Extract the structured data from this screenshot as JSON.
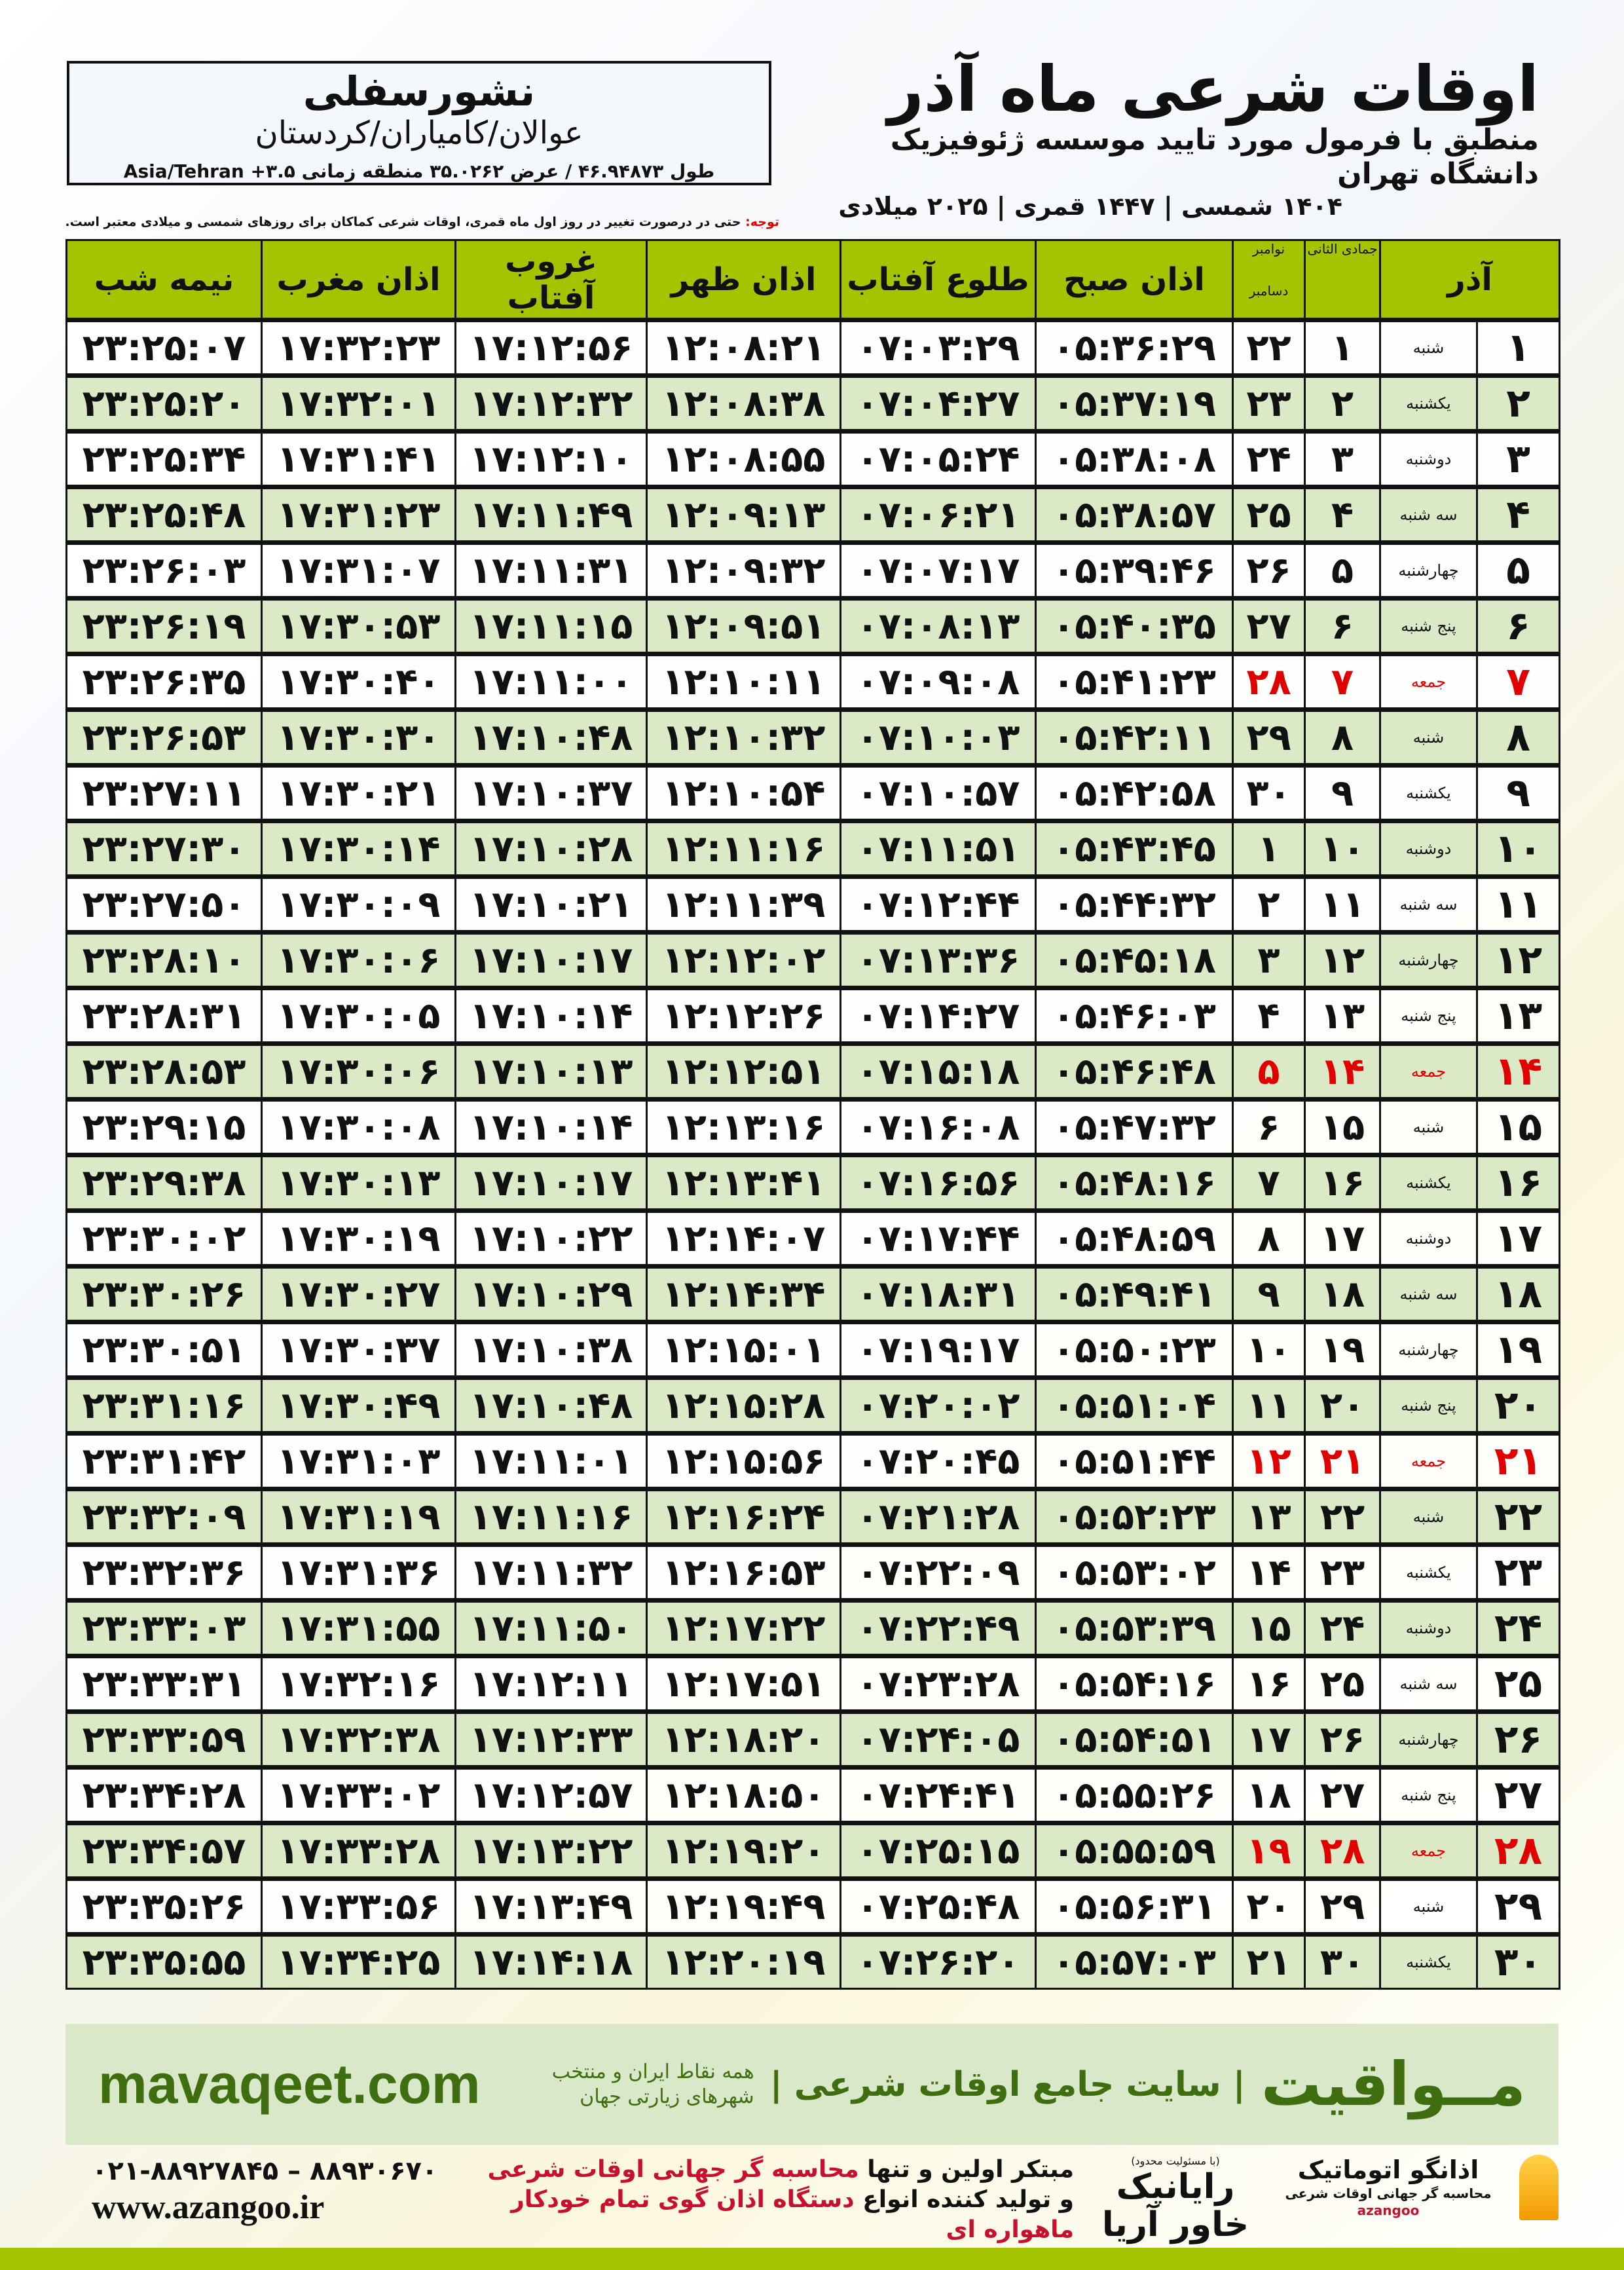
{
  "location": {
    "name": "نشورسفلی",
    "region": "عوالان/کامیاران/کردستان",
    "coords": "طول ۴۶.۹۴۸۷۳ / عرض ۳۵.۰۲۶۲ منطقه زمانی ۳.۵+ Asia/Tehran"
  },
  "header": {
    "title": "اوقات شرعی ماه آذر",
    "subtitle": "منطبق با فرمول مورد تایید موسسه ژئوفیزیک دانشگاه تهران",
    "years": "۱۴۰۴ شمسی | ۱۴۴۷ قمری | ۲۰۲۵ میلادی",
    "note_label": "توجه:",
    "note": " حتی در درصورت تغییر در روز اول ماه قمری، اوقات شرعی کماکان برای روزهای شمسی و میلادی معتبر است."
  },
  "colors": {
    "header_green": "#a5c400",
    "row_alt": "#dce9c7",
    "friday": "#e00000",
    "brand_green": "#3f6e10"
  },
  "table": {
    "columns": {
      "azar": "آذر",
      "jumada": "جمادی الثانی",
      "november": "نوامبر",
      "december": "دسامبر",
      "fajr": "اذان صبح",
      "sunrise": "طلوع آفتاب",
      "dhuhr": "اذان ظهر",
      "sunset": "غروب آفتاب",
      "maghrib": "اذان مغرب",
      "midnight": "نیمه شب"
    },
    "rows": [
      {
        "azar": "۱",
        "weekday": "شنبه",
        "jumada": "۱",
        "greg": "۲۲",
        "fajr": "۰۵:۳۶:۲۹",
        "sunrise": "۰۷:۰۳:۲۹",
        "dhuhr": "۱۲:۰۸:۲۱",
        "sunset": "۱۷:۱۲:۵۶",
        "maghrib": "۱۷:۳۲:۲۳",
        "midnight": "۲۳:۲۵:۰۷"
      },
      {
        "azar": "۲",
        "weekday": "یکشنبه",
        "jumada": "۲",
        "greg": "۲۳",
        "fajr": "۰۵:۳۷:۱۹",
        "sunrise": "۰۷:۰۴:۲۷",
        "dhuhr": "۱۲:۰۸:۳۸",
        "sunset": "۱۷:۱۲:۳۲",
        "maghrib": "۱۷:۳۲:۰۱",
        "midnight": "۲۳:۲۵:۲۰"
      },
      {
        "azar": "۳",
        "weekday": "دوشنبه",
        "jumada": "۳",
        "greg": "۲۴",
        "fajr": "۰۵:۳۸:۰۸",
        "sunrise": "۰۷:۰۵:۲۴",
        "dhuhr": "۱۲:۰۸:۵۵",
        "sunset": "۱۷:۱۲:۱۰",
        "maghrib": "۱۷:۳۱:۴۱",
        "midnight": "۲۳:۲۵:۳۴"
      },
      {
        "azar": "۴",
        "weekday": "سه شنبه",
        "jumada": "۴",
        "greg": "۲۵",
        "fajr": "۰۵:۳۸:۵۷",
        "sunrise": "۰۷:۰۶:۲۱",
        "dhuhr": "۱۲:۰۹:۱۳",
        "sunset": "۱۷:۱۱:۴۹",
        "maghrib": "۱۷:۳۱:۲۳",
        "midnight": "۲۳:۲۵:۴۸"
      },
      {
        "azar": "۵",
        "weekday": "چهارشنبه",
        "jumada": "۵",
        "greg": "۲۶",
        "fajr": "۰۵:۳۹:۴۶",
        "sunrise": "۰۷:۰۷:۱۷",
        "dhuhr": "۱۲:۰۹:۳۲",
        "sunset": "۱۷:۱۱:۳۱",
        "maghrib": "۱۷:۳۱:۰۷",
        "midnight": "۲۳:۲۶:۰۳"
      },
      {
        "azar": "۶",
        "weekday": "پنج شنبه",
        "jumada": "۶",
        "greg": "۲۷",
        "fajr": "۰۵:۴۰:۳۵",
        "sunrise": "۰۷:۰۸:۱۳",
        "dhuhr": "۱۲:۰۹:۵۱",
        "sunset": "۱۷:۱۱:۱۵",
        "maghrib": "۱۷:۳۰:۵۳",
        "midnight": "۲۳:۲۶:۱۹"
      },
      {
        "azar": "۷",
        "weekday": "جمعه",
        "jumada": "۷",
        "greg": "۲۸",
        "fajr": "۰۵:۴۱:۲۳",
        "sunrise": "۰۷:۰۹:۰۸",
        "dhuhr": "۱۲:۱۰:۱۱",
        "sunset": "۱۷:۱۱:۰۰",
        "maghrib": "۱۷:۳۰:۴۰",
        "midnight": "۲۳:۲۶:۳۵",
        "friday": true
      },
      {
        "azar": "۸",
        "weekday": "شنبه",
        "jumada": "۸",
        "greg": "۲۹",
        "fajr": "۰۵:۴۲:۱۱",
        "sunrise": "۰۷:۱۰:۰۳",
        "dhuhr": "۱۲:۱۰:۳۲",
        "sunset": "۱۷:۱۰:۴۸",
        "maghrib": "۱۷:۳۰:۳۰",
        "midnight": "۲۳:۲۶:۵۳"
      },
      {
        "azar": "۹",
        "weekday": "یکشنبه",
        "jumada": "۹",
        "greg": "۳۰",
        "fajr": "۰۵:۴۲:۵۸",
        "sunrise": "۰۷:۱۰:۵۷",
        "dhuhr": "۱۲:۱۰:۵۴",
        "sunset": "۱۷:۱۰:۳۷",
        "maghrib": "۱۷:۳۰:۲۱",
        "midnight": "۲۳:۲۷:۱۱"
      },
      {
        "azar": "۱۰",
        "weekday": "دوشنبه",
        "jumada": "۱۰",
        "greg": "۱",
        "fajr": "۰۵:۴۳:۴۵",
        "sunrise": "۰۷:۱۱:۵۱",
        "dhuhr": "۱۲:۱۱:۱۶",
        "sunset": "۱۷:۱۰:۲۸",
        "maghrib": "۱۷:۳۰:۱۴",
        "midnight": "۲۳:۲۷:۳۰"
      },
      {
        "azar": "۱۱",
        "weekday": "سه شنبه",
        "jumada": "۱۱",
        "greg": "۲",
        "fajr": "۰۵:۴۴:۳۲",
        "sunrise": "۰۷:۱۲:۴۴",
        "dhuhr": "۱۲:۱۱:۳۹",
        "sunset": "۱۷:۱۰:۲۱",
        "maghrib": "۱۷:۳۰:۰۹",
        "midnight": "۲۳:۲۷:۵۰"
      },
      {
        "azar": "۱۲",
        "weekday": "چهارشنبه",
        "jumada": "۱۲",
        "greg": "۳",
        "fajr": "۰۵:۴۵:۱۸",
        "sunrise": "۰۷:۱۳:۳۶",
        "dhuhr": "۱۲:۱۲:۰۲",
        "sunset": "۱۷:۱۰:۱۷",
        "maghrib": "۱۷:۳۰:۰۶",
        "midnight": "۲۳:۲۸:۱۰"
      },
      {
        "azar": "۱۳",
        "weekday": "پنج شنبه",
        "jumada": "۱۳",
        "greg": "۴",
        "fajr": "۰۵:۴۶:۰۳",
        "sunrise": "۰۷:۱۴:۲۷",
        "dhuhr": "۱۲:۱۲:۲۶",
        "sunset": "۱۷:۱۰:۱۴",
        "maghrib": "۱۷:۳۰:۰۵",
        "midnight": "۲۳:۲۸:۳۱"
      },
      {
        "azar": "۱۴",
        "weekday": "جمعه",
        "jumada": "۱۴",
        "greg": "۵",
        "fajr": "۰۵:۴۶:۴۸",
        "sunrise": "۰۷:۱۵:۱۸",
        "dhuhr": "۱۲:۱۲:۵۱",
        "sunset": "۱۷:۱۰:۱۳",
        "maghrib": "۱۷:۳۰:۰۶",
        "midnight": "۲۳:۲۸:۵۳",
        "friday": true
      },
      {
        "azar": "۱۵",
        "weekday": "شنبه",
        "jumada": "۱۵",
        "greg": "۶",
        "fajr": "۰۵:۴۷:۳۲",
        "sunrise": "۰۷:۱۶:۰۸",
        "dhuhr": "۱۲:۱۳:۱۶",
        "sunset": "۱۷:۱۰:۱۴",
        "maghrib": "۱۷:۳۰:۰۸",
        "midnight": "۲۳:۲۹:۱۵"
      },
      {
        "azar": "۱۶",
        "weekday": "یکشنبه",
        "jumada": "۱۶",
        "greg": "۷",
        "fajr": "۰۵:۴۸:۱۶",
        "sunrise": "۰۷:۱۶:۵۶",
        "dhuhr": "۱۲:۱۳:۴۱",
        "sunset": "۱۷:۱۰:۱۷",
        "maghrib": "۱۷:۳۰:۱۳",
        "midnight": "۲۳:۲۹:۳۸"
      },
      {
        "azar": "۱۷",
        "weekday": "دوشنبه",
        "jumada": "۱۷",
        "greg": "۸",
        "fajr": "۰۵:۴۸:۵۹",
        "sunrise": "۰۷:۱۷:۴۴",
        "dhuhr": "۱۲:۱۴:۰۷",
        "sunset": "۱۷:۱۰:۲۲",
        "maghrib": "۱۷:۳۰:۱۹",
        "midnight": "۲۳:۳۰:۰۲"
      },
      {
        "azar": "۱۸",
        "weekday": "سه شنبه",
        "jumada": "۱۸",
        "greg": "۹",
        "fajr": "۰۵:۴۹:۴۱",
        "sunrise": "۰۷:۱۸:۳۱",
        "dhuhr": "۱۲:۱۴:۳۴",
        "sunset": "۱۷:۱۰:۲۹",
        "maghrib": "۱۷:۳۰:۲۷",
        "midnight": "۲۳:۳۰:۲۶"
      },
      {
        "azar": "۱۹",
        "weekday": "چهارشنبه",
        "jumada": "۱۹",
        "greg": "۱۰",
        "fajr": "۰۵:۵۰:۲۳",
        "sunrise": "۰۷:۱۹:۱۷",
        "dhuhr": "۱۲:۱۵:۰۱",
        "sunset": "۱۷:۱۰:۳۸",
        "maghrib": "۱۷:۳۰:۳۷",
        "midnight": "۲۳:۳۰:۵۱"
      },
      {
        "azar": "۲۰",
        "weekday": "پنج شنبه",
        "jumada": "۲۰",
        "greg": "۱۱",
        "fajr": "۰۵:۵۱:۰۴",
        "sunrise": "۰۷:۲۰:۰۲",
        "dhuhr": "۱۲:۱۵:۲۸",
        "sunset": "۱۷:۱۰:۴۸",
        "maghrib": "۱۷:۳۰:۴۹",
        "midnight": "۲۳:۳۱:۱۶"
      },
      {
        "azar": "۲۱",
        "weekday": "جمعه",
        "jumada": "۲۱",
        "greg": "۱۲",
        "fajr": "۰۵:۵۱:۴۴",
        "sunrise": "۰۷:۲۰:۴۵",
        "dhuhr": "۱۲:۱۵:۵۶",
        "sunset": "۱۷:۱۱:۰۱",
        "maghrib": "۱۷:۳۱:۰۳",
        "midnight": "۲۳:۳۱:۴۲",
        "friday": true
      },
      {
        "azar": "۲۲",
        "weekday": "شنبه",
        "jumada": "۲۲",
        "greg": "۱۳",
        "fajr": "۰۵:۵۲:۲۳",
        "sunrise": "۰۷:۲۱:۲۸",
        "dhuhr": "۱۲:۱۶:۲۴",
        "sunset": "۱۷:۱۱:۱۶",
        "maghrib": "۱۷:۳۱:۱۹",
        "midnight": "۲۳:۳۲:۰۹"
      },
      {
        "azar": "۲۳",
        "weekday": "یکشنبه",
        "jumada": "۲۳",
        "greg": "۱۴",
        "fajr": "۰۵:۵۳:۰۲",
        "sunrise": "۰۷:۲۲:۰۹",
        "dhuhr": "۱۲:۱۶:۵۳",
        "sunset": "۱۷:۱۱:۳۲",
        "maghrib": "۱۷:۳۱:۳۶",
        "midnight": "۲۳:۳۲:۳۶"
      },
      {
        "azar": "۲۴",
        "weekday": "دوشنبه",
        "jumada": "۲۴",
        "greg": "۱۵",
        "fajr": "۰۵:۵۳:۳۹",
        "sunrise": "۰۷:۲۲:۴۹",
        "dhuhr": "۱۲:۱۷:۲۲",
        "sunset": "۱۷:۱۱:۵۰",
        "maghrib": "۱۷:۳۱:۵۵",
        "midnight": "۲۳:۳۳:۰۳"
      },
      {
        "azar": "۲۵",
        "weekday": "سه شنبه",
        "jumada": "۲۵",
        "greg": "۱۶",
        "fajr": "۰۵:۵۴:۱۶",
        "sunrise": "۰۷:۲۳:۲۸",
        "dhuhr": "۱۲:۱۷:۵۱",
        "sunset": "۱۷:۱۲:۱۱",
        "maghrib": "۱۷:۳۲:۱۶",
        "midnight": "۲۳:۳۳:۳۱"
      },
      {
        "azar": "۲۶",
        "weekday": "چهارشنبه",
        "jumada": "۲۶",
        "greg": "۱۷",
        "fajr": "۰۵:۵۴:۵۱",
        "sunrise": "۰۷:۲۴:۰۵",
        "dhuhr": "۱۲:۱۸:۲۰",
        "sunset": "۱۷:۱۲:۳۳",
        "maghrib": "۱۷:۳۲:۳۸",
        "midnight": "۲۳:۳۳:۵۹"
      },
      {
        "azar": "۲۷",
        "weekday": "پنج شنبه",
        "jumada": "۲۷",
        "greg": "۱۸",
        "fajr": "۰۵:۵۵:۲۶",
        "sunrise": "۰۷:۲۴:۴۱",
        "dhuhr": "۱۲:۱۸:۵۰",
        "sunset": "۱۷:۱۲:۵۷",
        "maghrib": "۱۷:۳۳:۰۲",
        "midnight": "۲۳:۳۴:۲۸"
      },
      {
        "azar": "۲۸",
        "weekday": "جمعه",
        "jumada": "۲۸",
        "greg": "۱۹",
        "fajr": "۰۵:۵۵:۵۹",
        "sunrise": "۰۷:۲۵:۱۵",
        "dhuhr": "۱۲:۱۹:۲۰",
        "sunset": "۱۷:۱۳:۲۲",
        "maghrib": "۱۷:۳۳:۲۸",
        "midnight": "۲۳:۳۴:۵۷",
        "friday": true
      },
      {
        "azar": "۲۹",
        "weekday": "شنبه",
        "jumada": "۲۹",
        "greg": "۲۰",
        "fajr": "۰۵:۵۶:۳۱",
        "sunrise": "۰۷:۲۵:۴۸",
        "dhuhr": "۱۲:۱۹:۴۹",
        "sunset": "۱۷:۱۳:۴۹",
        "maghrib": "۱۷:۳۳:۵۶",
        "midnight": "۲۳:۳۵:۲۶"
      },
      {
        "azar": "۳۰",
        "weekday": "یکشنبه",
        "jumada": "۳۰",
        "greg": "۲۱",
        "fajr": "۰۵:۵۷:۰۳",
        "sunrise": "۰۷:۲۶:۲۰",
        "dhuhr": "۱۲:۲۰:۱۹",
        "sunset": "۱۷:۱۴:۱۸",
        "maghrib": "۱۷:۳۴:۲۵",
        "midnight": "۲۳:۳۵:۵۵"
      }
    ]
  },
  "banner": {
    "site": "mavaqeet.com",
    "brand": "مــواقیت",
    "tagline": "| سایت جامع اوقات شرعی |",
    "sub": "همه نقاط ایران و منتخب شهرهای زیارتی جهان"
  },
  "footer": {
    "phones": "۰۲۱-۸۸۹۲۷۸۴۵ – ۸۸۹۳۰۶۷۰",
    "website": "www.azangoo.ir",
    "promo_line1_a": "مبتکر اولین و تنها ",
    "promo_line1_b": "محاسبه گر جهانی اوقات شرعی",
    "promo_line2_a": "و تولید کننده انواع ",
    "promo_line2_b": "دستگاه اذان گوی تمام خودکار ماهواره ای",
    "rayanik_note": "(با مسئولیت محدود)",
    "rayanik": "رایانیک خاور آریا",
    "azangoo_name": "اذانگو اتوماتیک",
    "azangoo_sub": "محاسبه گر جهانی اوقات شرعی",
    "azangoo_latin": "azangoo"
  }
}
